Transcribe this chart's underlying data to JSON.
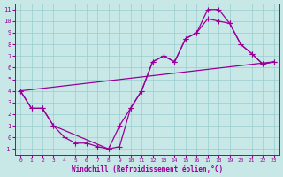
{
  "xlabel": "Windchill (Refroidissement éolien,°C)",
  "xlim_min": -0.5,
  "xlim_max": 23.5,
  "ylim_min": -1.5,
  "ylim_max": 11.5,
  "xticks": [
    0,
    1,
    2,
    3,
    4,
    5,
    6,
    7,
    8,
    9,
    10,
    11,
    12,
    13,
    14,
    15,
    16,
    17,
    18,
    19,
    20,
    21,
    22,
    23
  ],
  "yticks": [
    -1,
    0,
    1,
    2,
    3,
    4,
    5,
    6,
    7,
    8,
    9,
    10,
    11
  ],
  "bg_color": "#c8e8e8",
  "line_color": "#990099",
  "grid_color": "#99cccc",
  "line1_x": [
    0,
    1,
    2,
    3,
    4,
    5,
    6,
    7,
    8,
    9,
    10,
    11,
    12,
    13,
    14,
    15,
    16,
    17,
    18,
    19,
    20,
    21,
    22,
    23
  ],
  "line1_y": [
    4,
    2.5,
    2.5,
    1,
    0,
    -0.5,
    -0.5,
    -0.8,
    -1,
    -0.8,
    2.5,
    4,
    6.5,
    7,
    6.5,
    8.5,
    9.0,
    10.2,
    10,
    9.8,
    8,
    7.2,
    6.3,
    6.5
  ],
  "line2_x": [
    0,
    1,
    2,
    3,
    8,
    9,
    10,
    11,
    12,
    13,
    14,
    15,
    16,
    17,
    18,
    19,
    20,
    21,
    22,
    23
  ],
  "line2_y": [
    4,
    2.5,
    2.5,
    1.0,
    -1,
    1.0,
    2.5,
    4,
    6.5,
    7,
    6.5,
    8.5,
    9.0,
    11,
    11,
    9.8,
    8,
    7.2,
    6.3,
    6.5
  ],
  "line3_x": [
    0,
    23
  ],
  "line3_y": [
    4,
    6.5
  ]
}
